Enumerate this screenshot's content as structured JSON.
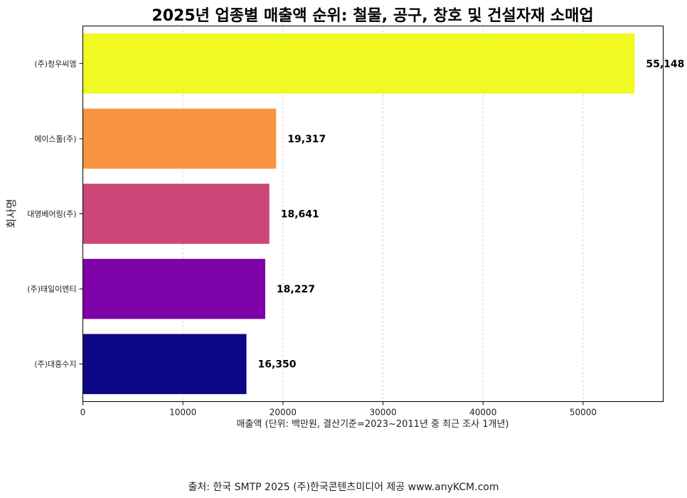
{
  "chart_data": {
    "type": "bar",
    "orientation": "horizontal",
    "title": "2025년 업종별 매출액 순위: 철물, 공구, 창호 및 건설자재 소매업",
    "xlabel": "매출액 (단위: 백만원, 결산기준=2023~2011년 중 최근 조사 1개년)",
    "ylabel": "회사명",
    "categories": [
      "(주)청우씨엠",
      "에이스툴(주)",
      "대영베어링(주)",
      "(주)태일이엔티",
      "(주)대흥수지"
    ],
    "values": [
      55148,
      19317,
      18641,
      18227,
      16350
    ],
    "value_labels": [
      "55,148",
      "19,317",
      "18,641",
      "18,227",
      "16,350"
    ],
    "colors": [
      "#f0f921",
      "#f89441",
      "#cc4778",
      "#7e03a8",
      "#0d0887"
    ],
    "xlim": [
      0,
      58000
    ],
    "xticks": [
      0,
      10000,
      20000,
      30000,
      40000,
      50000
    ],
    "xtick_labels": [
      "0",
      "10000",
      "20000",
      "30000",
      "40000",
      "50000"
    ],
    "grid": "x-dashed",
    "legend": "none"
  },
  "source": "출처: 한국 SMTP 2025  (주)한국콘텐츠미디어 제공  www.anyKCM.com"
}
